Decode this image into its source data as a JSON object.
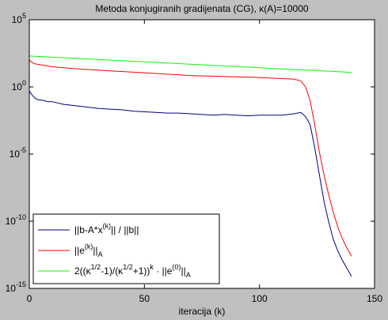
{
  "chart_data": {
    "type": "line",
    "title": "Metoda konjugiranih gradijenata (CG), κ(A)=10000",
    "xlabel": "iteracija (k)",
    "ylabel": "",
    "xlim": [
      0,
      150
    ],
    "ylim_log10": [
      -15,
      5
    ],
    "yscale": "log",
    "x_ticks": [
      0,
      50,
      100,
      150
    ],
    "x_tick_labels": [
      "0",
      "50",
      "100",
      "150"
    ],
    "y_ticks_log10": [
      -15,
      -10,
      -5,
      0,
      5
    ],
    "y_tick_labels": [
      {
        "base": "10",
        "exp": "-15"
      },
      {
        "base": "10",
        "exp": "-10"
      },
      {
        "base": "10",
        "exp": "-5"
      },
      {
        "base": "10",
        "exp": "0"
      },
      {
        "base": "10",
        "exp": "5"
      }
    ],
    "grid": false,
    "legend_position": "bottom-left",
    "series": [
      {
        "legend_parts": [
          {
            "t": "||b-A*x"
          },
          {
            "t": "(k)",
            "sup": true
          },
          {
            "t": "|| / ||b||"
          }
        ],
        "color": "#000080",
        "log10_points": [
          [
            0,
            -0.3
          ],
          [
            1,
            -0.55
          ],
          [
            2,
            -0.75
          ],
          [
            3,
            -0.9
          ],
          [
            4,
            -0.95
          ],
          [
            6,
            -1.0
          ],
          [
            8,
            -1.1
          ],
          [
            10,
            -1.1
          ],
          [
            15,
            -1.3
          ],
          [
            20,
            -1.4
          ],
          [
            25,
            -1.5
          ],
          [
            30,
            -1.6
          ],
          [
            35,
            -1.65
          ],
          [
            40,
            -1.7
          ],
          [
            45,
            -1.8
          ],
          [
            50,
            -1.85
          ],
          [
            55,
            -1.9
          ],
          [
            60,
            -1.95
          ],
          [
            65,
            -1.95
          ],
          [
            70,
            -2.0
          ],
          [
            75,
            -2.05
          ],
          [
            80,
            -2.1
          ],
          [
            85,
            -2.05
          ],
          [
            90,
            -2.1
          ],
          [
            95,
            -2.15
          ],
          [
            100,
            -2.1
          ],
          [
            105,
            -2.1
          ],
          [
            110,
            -2.1
          ],
          [
            115,
            -2.0
          ],
          [
            118,
            -1.9
          ],
          [
            120,
            -2.2
          ],
          [
            122,
            -2.8
          ],
          [
            124,
            -4.5
          ],
          [
            126,
            -6.5
          ],
          [
            128,
            -8.5
          ],
          [
            130,
            -10.0
          ],
          [
            132,
            -11.3
          ],
          [
            134,
            -12.2
          ],
          [
            136,
            -12.9
          ],
          [
            138,
            -13.5
          ],
          [
            140,
            -14.1
          ]
        ]
      },
      {
        "legend_parts": [
          {
            "t": "||e"
          },
          {
            "t": "(k)",
            "sup": true
          },
          {
            "t": "||"
          },
          {
            "t": "A",
            "sub": true
          }
        ],
        "color": "#ff0000",
        "log10_points": [
          [
            0,
            2.0
          ],
          [
            1,
            1.85
          ],
          [
            2,
            1.75
          ],
          [
            3,
            1.7
          ],
          [
            5,
            1.65
          ],
          [
            10,
            1.5
          ],
          [
            20,
            1.35
          ],
          [
            30,
            1.25
          ],
          [
            40,
            1.15
          ],
          [
            50,
            1.05
          ],
          [
            60,
            0.95
          ],
          [
            70,
            0.85
          ],
          [
            80,
            0.8
          ],
          [
            90,
            0.75
          ],
          [
            100,
            0.7
          ],
          [
            110,
            0.62
          ],
          [
            115,
            0.58
          ],
          [
            118,
            0.45
          ],
          [
            120,
            0.0
          ],
          [
            122,
            -1.0
          ],
          [
            124,
            -2.8
          ],
          [
            126,
            -4.8
          ],
          [
            128,
            -6.5
          ],
          [
            130,
            -8.0
          ],
          [
            132,
            -9.3
          ],
          [
            134,
            -10.4
          ],
          [
            136,
            -11.3
          ],
          [
            138,
            -12.0
          ],
          [
            140,
            -12.6
          ]
        ]
      },
      {
        "legend_parts": [
          {
            "t": "2((κ"
          },
          {
            "t": "1/2",
            "sup": true
          },
          {
            "t": "-1)/(κ"
          },
          {
            "t": "1/2",
            "sup": true
          },
          {
            "t": "+1))"
          },
          {
            "t": "k",
            "sup": true
          },
          {
            "t": " · ||e"
          },
          {
            "t": "(0)",
            "sup": true
          },
          {
            "t": "||"
          },
          {
            "t": "A",
            "sub": true
          }
        ],
        "color": "#00ff00",
        "log10_points": [
          [
            0,
            2.3
          ],
          [
            140,
            1.08
          ]
        ]
      }
    ]
  }
}
